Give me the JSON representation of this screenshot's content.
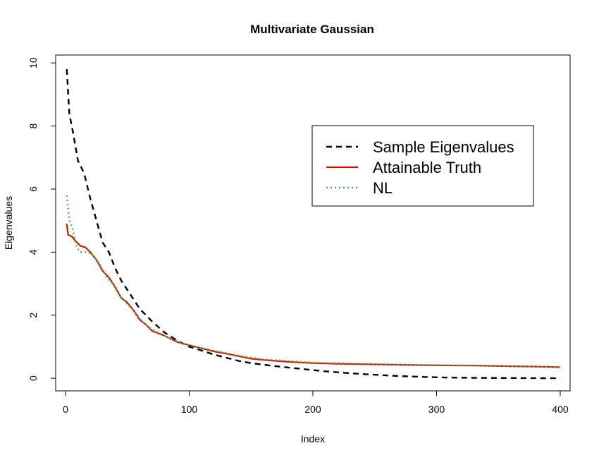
{
  "chart_data": {
    "type": "line",
    "title": "Multivariate Gaussian",
    "xlabel": "Index",
    "ylabel": "Eigenvalues",
    "xlim": [
      -8,
      408
    ],
    "ylim": [
      -0.4,
      10.25
    ],
    "x_ticks": [
      0,
      100,
      200,
      300,
      400
    ],
    "y_ticks": [
      0,
      2,
      4,
      6,
      8,
      10
    ],
    "grid": false,
    "legend_position": "upper-right",
    "series": [
      {
        "name": "Sample Eigenvalues",
        "color": "#000000",
        "dash": "dashed",
        "points": [
          [
            1,
            9.8
          ],
          [
            3,
            8.4
          ],
          [
            6,
            7.8
          ],
          [
            10,
            6.9
          ],
          [
            15,
            6.5
          ],
          [
            20,
            5.7
          ],
          [
            25,
            5.0
          ],
          [
            30,
            4.3
          ],
          [
            35,
            4.0
          ],
          [
            40,
            3.5
          ],
          [
            45,
            3.1
          ],
          [
            50,
            2.8
          ],
          [
            55,
            2.5
          ],
          [
            60,
            2.2
          ],
          [
            70,
            1.8
          ],
          [
            80,
            1.45
          ],
          [
            90,
            1.2
          ],
          [
            100,
            1.0
          ],
          [
            110,
            0.88
          ],
          [
            120,
            0.75
          ],
          [
            130,
            0.65
          ],
          [
            140,
            0.55
          ],
          [
            150,
            0.48
          ],
          [
            170,
            0.38
          ],
          [
            190,
            0.3
          ],
          [
            210,
            0.22
          ],
          [
            230,
            0.16
          ],
          [
            250,
            0.11
          ],
          [
            270,
            0.07
          ],
          [
            290,
            0.04
          ],
          [
            310,
            0.02
          ],
          [
            340,
            0.01
          ],
          [
            370,
            0.005
          ],
          [
            400,
            0.0
          ]
        ]
      },
      {
        "name": "Attainable Truth",
        "color": "#c0200a",
        "dash": "solid",
        "points": [
          [
            1,
            4.9
          ],
          [
            2,
            4.55
          ],
          [
            5,
            4.5
          ],
          [
            8,
            4.35
          ],
          [
            12,
            4.2
          ],
          [
            16,
            4.15
          ],
          [
            20,
            4.0
          ],
          [
            25,
            3.75
          ],
          [
            30,
            3.4
          ],
          [
            35,
            3.2
          ],
          [
            40,
            2.9
          ],
          [
            45,
            2.55
          ],
          [
            50,
            2.4
          ],
          [
            55,
            2.15
          ],
          [
            60,
            1.85
          ],
          [
            65,
            1.7
          ],
          [
            70,
            1.5
          ],
          [
            80,
            1.35
          ],
          [
            90,
            1.15
          ],
          [
            100,
            1.05
          ],
          [
            110,
            0.95
          ],
          [
            120,
            0.85
          ],
          [
            130,
            0.78
          ],
          [
            140,
            0.7
          ],
          [
            150,
            0.62
          ],
          [
            160,
            0.58
          ],
          [
            180,
            0.52
          ],
          [
            200,
            0.48
          ],
          [
            220,
            0.46
          ],
          [
            250,
            0.44
          ],
          [
            280,
            0.42
          ],
          [
            300,
            0.41
          ],
          [
            330,
            0.4
          ],
          [
            360,
            0.38
          ],
          [
            380,
            0.37
          ],
          [
            400,
            0.35
          ]
        ]
      },
      {
        "name": "NL",
        "color": "#4caf50",
        "dash": "dotted",
        "points": [
          [
            1,
            5.8
          ],
          [
            3,
            5.0
          ],
          [
            6,
            4.7
          ],
          [
            9,
            4.15
          ],
          [
            12,
            4.0
          ],
          [
            18,
            4.0
          ],
          [
            22,
            3.9
          ],
          [
            28,
            3.6
          ],
          [
            33,
            3.2
          ],
          [
            38,
            3.0
          ],
          [
            44,
            2.6
          ],
          [
            50,
            2.35
          ],
          [
            56,
            2.1
          ],
          [
            62,
            1.8
          ],
          [
            68,
            1.6
          ],
          [
            75,
            1.45
          ],
          [
            85,
            1.25
          ],
          [
            95,
            1.1
          ],
          [
            105,
            1.0
          ],
          [
            120,
            0.88
          ],
          [
            140,
            0.72
          ],
          [
            160,
            0.6
          ],
          [
            180,
            0.55
          ],
          [
            200,
            0.5
          ],
          [
            230,
            0.47
          ],
          [
            260,
            0.44
          ],
          [
            290,
            0.42
          ],
          [
            320,
            0.41
          ],
          [
            350,
            0.39
          ],
          [
            380,
            0.37
          ],
          [
            400,
            0.36
          ]
        ]
      }
    ]
  }
}
